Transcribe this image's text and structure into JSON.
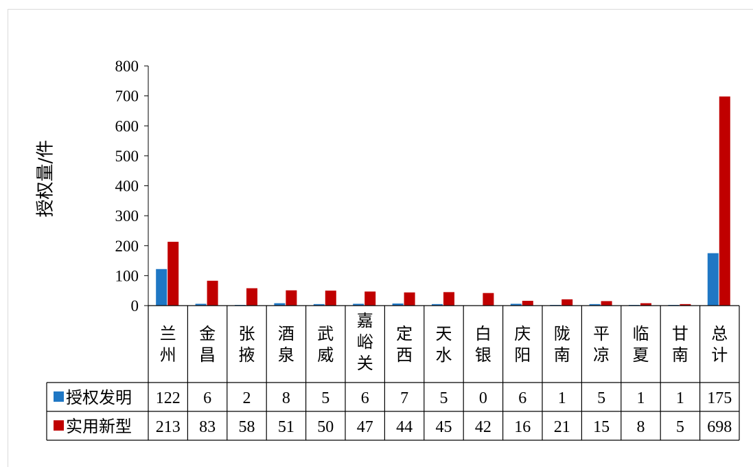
{
  "chart_data": {
    "type": "bar",
    "ylabel": "授权量/件",
    "ylim": [
      0,
      800
    ],
    "yticks": [
      0,
      100,
      200,
      300,
      400,
      500,
      600,
      700,
      800
    ],
    "categories": [
      "兰州",
      "金昌",
      "张掖",
      "酒泉",
      "武威",
      "嘉峪关",
      "定西",
      "天水",
      "白银",
      "庆阳",
      "陇南",
      "平凉",
      "临夏",
      "甘南",
      "总计"
    ],
    "series": [
      {
        "name": "授权发明",
        "color": "#1f77c4",
        "values": [
          122,
          6,
          2,
          8,
          5,
          6,
          7,
          5,
          0,
          6,
          1,
          5,
          1,
          1,
          175
        ]
      },
      {
        "name": "实用新型",
        "color": "#c00000",
        "values": [
          213,
          83,
          58,
          51,
          50,
          47,
          44,
          45,
          42,
          16,
          21,
          15,
          8,
          5,
          698
        ]
      }
    ],
    "legend": "data-table"
  }
}
